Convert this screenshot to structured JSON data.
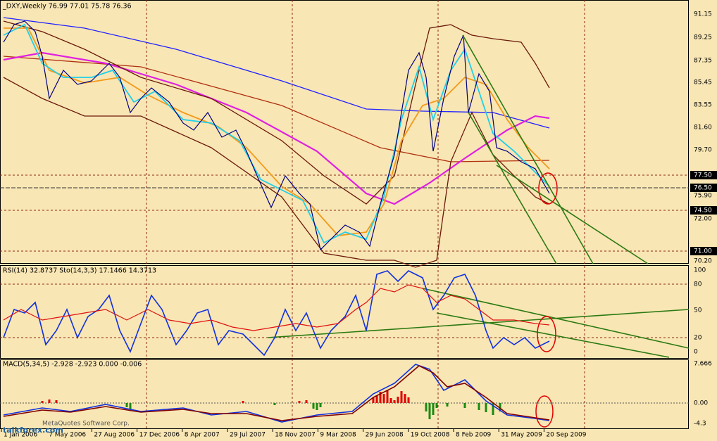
{
  "main_panel": {
    "header": "_DXY,Weekly  76.99 77.01 75.78 76.36",
    "price_labels": [
      "91.15",
      "89.25",
      "87.35",
      "85.45",
      "83.55",
      "81.60",
      "79.70",
      "77.50",
      "76.50",
      "75.90",
      "74.50",
      "72.00",
      "71.00",
      "70.20"
    ]
  },
  "rsi_panel": {
    "header": "RSI(14) 32.8737  Sto(14,3,3) 17.1466 14.3713",
    "levels": [
      "100",
      "80",
      "50",
      "20",
      "0"
    ]
  },
  "macd_panel": {
    "header": "MACD(5,34,5) -2.928 -2.923 0.000 -0.006",
    "levels": [
      "7.666",
      "0.00",
      "-4.3"
    ]
  },
  "date_axis": [
    "1 Jan 2006",
    "7 May 2006",
    "27 Aug 2006",
    "17 Dec 2006",
    "8 Apr 2007",
    "29 Jul 2007",
    "18 Nov 2007",
    "9 Mar 2008",
    "29 Jun 2008",
    "19 Oct 2008",
    "8 Feb 2009",
    "31 May 2009",
    "20 Sep 2009"
  ],
  "watermark": {
    "copyright": "MetaQuotes Software Corp.",
    "site": "talkforex.com"
  }
}
